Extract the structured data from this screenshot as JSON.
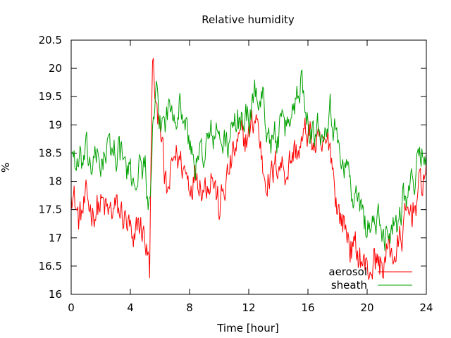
{
  "chart_data": {
    "type": "line",
    "title": "Relative humidity",
    "xlabel": "Time [hour]",
    "ylabel": "%",
    "xlim": [
      0,
      24
    ],
    "ylim": [
      16,
      20.5
    ],
    "xticks": [
      0,
      4,
      8,
      12,
      16,
      20,
      24
    ],
    "yticks": [
      16,
      16.5,
      17,
      17.5,
      18,
      18.5,
      19,
      19.5,
      20,
      20.5
    ],
    "grid": false,
    "legend_position": "bottom-right",
    "series": [
      {
        "name": "aerosol",
        "color": "#ff0000",
        "x": [
          0,
          0.5,
          1,
          1.5,
          2,
          2.5,
          3,
          3.5,
          4,
          4.2,
          4.5,
          5,
          5.3,
          5.5,
          5.8,
          6,
          6.3,
          6.5,
          7,
          7.5,
          8,
          8.5,
          9,
          9.5,
          10,
          10.5,
          11,
          11.5,
          12,
          12.5,
          13,
          13.5,
          14,
          14.5,
          15,
          15.5,
          16,
          16.5,
          17,
          17.5,
          18,
          18.5,
          19,
          19.5,
          20,
          20.5,
          21,
          21.5,
          22,
          22.5,
          23,
          23.5,
          24
        ],
        "y": [
          18.0,
          17.3,
          17.6,
          17.5,
          17.6,
          17.4,
          17.5,
          17.4,
          17.1,
          16.6,
          17.3,
          17.0,
          16.4,
          20.2,
          19.0,
          19.3,
          18.0,
          17.7,
          18.5,
          18.3,
          18.0,
          18.2,
          17.9,
          18.2,
          17.5,
          18.0,
          18.5,
          18.7,
          18.8,
          19.2,
          18.2,
          18.0,
          18.4,
          18.2,
          18.5,
          18.6,
          18.9,
          18.6,
          18.5,
          18.7,
          17.5,
          17.2,
          16.8,
          16.7,
          16.4,
          16.6,
          16.5,
          16.8,
          16.7,
          17.2,
          17.5,
          17.8,
          18.3
        ]
      },
      {
        "name": "sheath",
        "color": "#00a000",
        "x": [
          0,
          0.5,
          1,
          1.5,
          2,
          2.5,
          3,
          3.5,
          4,
          4.5,
          5,
          5.3,
          5.5,
          5.8,
          6,
          6.5,
          7,
          7.5,
          8,
          8.5,
          9,
          9.5,
          10,
          10.5,
          11,
          11.5,
          12,
          12.5,
          13,
          13.5,
          14,
          14.5,
          15,
          15.5,
          16,
          16.5,
          17,
          17.5,
          18,
          18.5,
          19,
          19.5,
          20,
          20.5,
          21,
          21.5,
          22,
          22.5,
          23,
          23.5,
          24
        ],
        "y": [
          18.6,
          18.2,
          18.4,
          18.3,
          18.4,
          18.5,
          18.6,
          18.4,
          18.0,
          18.2,
          18.3,
          17.4,
          18.8,
          19.4,
          19.0,
          19.2,
          19.4,
          19.3,
          18.6,
          18.3,
          18.6,
          18.8,
          18.8,
          18.6,
          18.9,
          19.2,
          19.1,
          19.6,
          19.4,
          18.7,
          18.8,
          18.9,
          19.3,
          19.8,
          19.2,
          18.9,
          19.0,
          19.4,
          18.6,
          18.4,
          17.8,
          17.5,
          17.2,
          17.3,
          17.1,
          17.2,
          17.3,
          17.8,
          17.9,
          18.4,
          18.7
        ]
      }
    ]
  }
}
